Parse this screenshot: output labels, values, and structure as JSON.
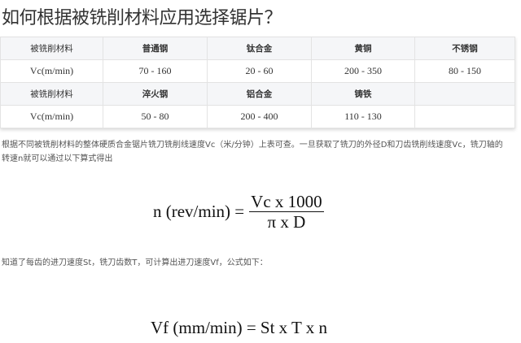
{
  "title": "如何根据被铣削材料应用选择锯片？",
  "table": {
    "rows": [
      [
        "被铣削材料",
        "普通钢",
        "钛合金",
        "黄铜",
        "不锈钢"
      ],
      [
        "Vc(m/min)",
        "70 - 160",
        "20 - 60",
        "200 - 350",
        "80 - 150"
      ],
      [
        "被铣削材料",
        "淬火钢",
        "铝合金",
        "铸铁",
        ""
      ],
      [
        "Vc(m/min)",
        "50 - 80",
        "200 - 400",
        "110 - 130",
        ""
      ]
    ]
  },
  "paragraph1": "根据不同被铣削材料的整体硬质合金锯片铣刀铣削线速度Vc（米/分钟）上表可查。一旦获取了铣刀的外径D和刀齿铣削线速度Vc，铣刀轴的转速n就可以通过以下算式得出",
  "formula1": {
    "lhs": "n (rev/min) =",
    "numerator": "Vc x 1000",
    "denominator": "π x D"
  },
  "paragraph2": "知道了每齿的进刀速度St，铣刀齿数T，可计算出进刀速度Vf，公式如下：",
  "formula2": "Vf (mm/min) = St x T x n"
}
